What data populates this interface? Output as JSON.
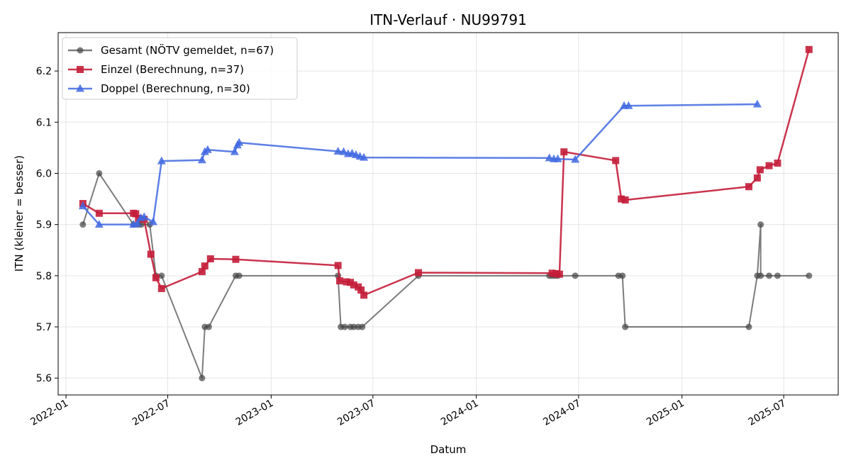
{
  "chart_data": {
    "type": "line",
    "title": "ITN-Verlauf · NU99791",
    "xlabel": "Datum",
    "ylabel": "ITN  (kleiner = besser)",
    "x_type": "date",
    "xlim": [
      "2021-12-18",
      "2025-10-06"
    ],
    "ylim": [
      5.567,
      6.275
    ],
    "x_ticks": [
      "2022-01-01",
      "2022-07-01",
      "2023-01-01",
      "2023-07-01",
      "2024-01-01",
      "2024-07-01",
      "2025-01-01",
      "2025-07-01"
    ],
    "x_tick_labels": [
      "2022-01",
      "2022-07",
      "2023-01",
      "2023-07",
      "2024-01",
      "2024-07",
      "2025-01",
      "2025-07"
    ],
    "y_ticks": [
      5.6,
      5.7,
      5.8,
      5.9,
      6.0,
      6.1,
      6.2
    ],
    "y_tick_labels": [
      "5.6",
      "5.7",
      "5.8",
      "5.9",
      "6.0",
      "6.1",
      "6.2"
    ],
    "grid": true,
    "legend_position": "top-left",
    "series": [
      {
        "name": "Gesamt (NÖTV gemeldet, n=67)",
        "color": "#444444",
        "marker": "circle",
        "points": [
          [
            "2022-01-31",
            5.9
          ],
          [
            "2022-03-01",
            6.0
          ],
          [
            "2022-05-01",
            5.9
          ],
          [
            "2022-05-10",
            5.9
          ],
          [
            "2022-05-15",
            5.9
          ],
          [
            "2022-05-30",
            5.9
          ],
          [
            "2022-06-10",
            5.8
          ],
          [
            "2022-06-20",
            5.8
          ],
          [
            "2022-08-31",
            5.6
          ],
          [
            "2022-09-05",
            5.7
          ],
          [
            "2022-09-12",
            5.7
          ],
          [
            "2022-10-30",
            5.8
          ],
          [
            "2022-11-05",
            5.8
          ],
          [
            "2023-04-30",
            5.8
          ],
          [
            "2023-05-05",
            5.7
          ],
          [
            "2023-05-12",
            5.7
          ],
          [
            "2023-05-22",
            5.7
          ],
          [
            "2023-05-28",
            5.7
          ],
          [
            "2023-06-05",
            5.7
          ],
          [
            "2023-06-12",
            5.7
          ],
          [
            "2023-09-20",
            5.8
          ],
          [
            "2024-05-10",
            5.8
          ],
          [
            "2024-05-15",
            5.8
          ],
          [
            "2024-05-20",
            5.8
          ],
          [
            "2024-05-25",
            5.8
          ],
          [
            "2024-06-25",
            5.8
          ],
          [
            "2024-09-10",
            5.8
          ],
          [
            "2024-09-17",
            5.8
          ],
          [
            "2024-09-22",
            5.7
          ],
          [
            "2025-04-30",
            5.7
          ],
          [
            "2025-05-15",
            5.8
          ],
          [
            "2025-05-21",
            5.9
          ],
          [
            "2025-05-21",
            5.8
          ],
          [
            "2025-06-05",
            5.8
          ],
          [
            "2025-06-20",
            5.8
          ],
          [
            "2025-08-15",
            5.8
          ]
        ]
      },
      {
        "name": "Einzel (Berechnung, n=37)",
        "color": "#c41e3a",
        "marker": "square",
        "points": [
          [
            "2022-01-31",
            5.941
          ],
          [
            "2022-03-01",
            5.922
          ],
          [
            "2022-05-01",
            5.922
          ],
          [
            "2022-05-05",
            5.921
          ],
          [
            "2022-05-10",
            5.912
          ],
          [
            "2022-05-20",
            5.91
          ],
          [
            "2022-06-01",
            5.842
          ],
          [
            "2022-06-10",
            5.796
          ],
          [
            "2022-06-20",
            5.775
          ],
          [
            "2022-08-31",
            5.808
          ],
          [
            "2022-09-05",
            5.819
          ],
          [
            "2022-09-15",
            5.833
          ],
          [
            "2022-10-30",
            5.832
          ],
          [
            "2023-04-30",
            5.82
          ],
          [
            "2023-05-03",
            5.79
          ],
          [
            "2023-05-15",
            5.788
          ],
          [
            "2023-05-22",
            5.787
          ],
          [
            "2023-05-28",
            5.782
          ],
          [
            "2023-06-05",
            5.778
          ],
          [
            "2023-06-10",
            5.772
          ],
          [
            "2023-06-15",
            5.762
          ],
          [
            "2023-09-20",
            5.806
          ],
          [
            "2024-05-15",
            5.805
          ],
          [
            "2024-05-22",
            5.804
          ],
          [
            "2024-05-28",
            5.803
          ],
          [
            "2024-06-05",
            6.042
          ],
          [
            "2024-09-05",
            6.025
          ],
          [
            "2024-09-15",
            5.95
          ],
          [
            "2024-09-22",
            5.948
          ],
          [
            "2025-04-30",
            5.974
          ],
          [
            "2025-05-15",
            5.991
          ],
          [
            "2025-05-20",
            6.007
          ],
          [
            "2025-06-05",
            6.015
          ],
          [
            "2025-06-20",
            6.02
          ],
          [
            "2025-08-15",
            6.242
          ]
        ]
      },
      {
        "name": "Doppel (Berechnung, n=30)",
        "color": "#4169e1",
        "marker": "triangle",
        "points": [
          [
            "2022-01-31",
            5.936
          ],
          [
            "2022-03-01",
            5.9
          ],
          [
            "2022-05-01",
            5.9
          ],
          [
            "2022-05-08",
            5.902
          ],
          [
            "2022-05-14",
            5.913
          ],
          [
            "2022-05-20",
            5.915
          ],
          [
            "2022-06-05",
            5.905
          ],
          [
            "2022-06-20",
            6.024
          ],
          [
            "2022-08-31",
            6.026
          ],
          [
            "2022-09-05",
            6.042
          ],
          [
            "2022-09-10",
            6.046
          ],
          [
            "2022-10-28",
            6.042
          ],
          [
            "2022-11-02",
            6.055
          ],
          [
            "2022-11-05",
            6.06
          ],
          [
            "2023-04-30",
            6.043
          ],
          [
            "2023-05-10",
            6.042
          ],
          [
            "2023-05-18",
            6.038
          ],
          [
            "2023-05-25",
            6.039
          ],
          [
            "2023-06-01",
            6.036
          ],
          [
            "2023-06-08",
            6.033
          ],
          [
            "2023-06-15",
            6.031
          ],
          [
            "2024-05-10",
            6.03
          ],
          [
            "2024-05-18",
            6.028
          ],
          [
            "2024-05-25",
            6.028
          ],
          [
            "2024-06-25",
            6.027
          ],
          [
            "2024-09-20",
            6.132
          ],
          [
            "2024-09-28",
            6.132
          ],
          [
            "2025-05-15",
            6.135
          ]
        ]
      }
    ]
  }
}
